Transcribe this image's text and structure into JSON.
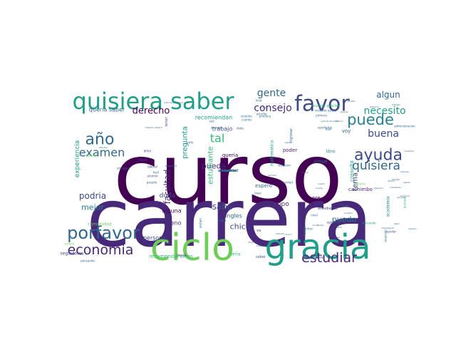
{
  "colors": {
    "background": "#ffffff",
    "palette": [
      "#440154",
      "#482878",
      "#3e4989",
      "#31688e",
      "#26828e",
      "#1f9e89",
      "#35b779",
      "#6ece58",
      "#b5de2b"
    ]
  },
  "words": [
    {
      "text": "curso",
      "weight": 1.0,
      "color": 0,
      "vertical": false
    },
    {
      "text": "carrera",
      "weight": 0.97,
      "color": 1,
      "vertical": false
    },
    {
      "text": "ciclo",
      "weight": 0.52,
      "color": 7,
      "vertical": false
    },
    {
      "text": "gracia",
      "weight": 0.5,
      "color": 5,
      "vertical": false
    },
    {
      "text": "quisiera saber",
      "weight": 0.34,
      "color": 5,
      "vertical": false
    },
    {
      "text": "favor",
      "weight": 0.3,
      "color": 2,
      "vertical": false
    },
    {
      "text": "porfavor",
      "weight": 0.26,
      "color": 3,
      "vertical": false
    },
    {
      "text": "ayuda",
      "weight": 0.24,
      "color": 2,
      "vertical": false
    },
    {
      "text": "economia",
      "weight": 0.24,
      "color": 1,
      "vertical": false
    },
    {
      "text": "estudiar",
      "weight": 0.24,
      "color": 1,
      "vertical": false
    },
    {
      "text": "año",
      "weight": 0.22,
      "color": 3,
      "vertical": false
    },
    {
      "text": "puede",
      "weight": 0.22,
      "color": 4,
      "vertical": false
    },
    {
      "text": "quisiera",
      "weight": 0.2,
      "color": 3,
      "vertical": false
    },
    {
      "text": "examen",
      "weight": 0.17,
      "color": 3,
      "vertical": false
    },
    {
      "text": "gente",
      "weight": 0.16,
      "color": 3,
      "vertical": false
    },
    {
      "text": "consejo",
      "weight": 0.16,
      "color": 1,
      "vertical": false
    },
    {
      "text": "buena",
      "weight": 0.16,
      "color": 2,
      "vertical": false
    },
    {
      "text": "necesito",
      "weight": 0.16,
      "color": 5,
      "vertical": false
    },
    {
      "text": "derecho",
      "weight": 0.16,
      "color": 0,
      "vertical": false
    },
    {
      "text": "algun",
      "weight": 0.14,
      "color": 3,
      "vertical": false
    },
    {
      "text": "tal",
      "weight": 0.15,
      "color": 6,
      "vertical": false
    },
    {
      "text": "podria",
      "weight": 0.14,
      "color": 2,
      "vertical": false
    },
    {
      "text": "pueda",
      "weight": 0.14,
      "color": 1,
      "vertical": false
    },
    {
      "text": "puedo",
      "weight": 0.14,
      "color": 4,
      "vertical": false
    },
    {
      "text": "mejor",
      "weight": 0.13,
      "color": 4,
      "vertical": false
    },
    {
      "text": "sabe",
      "weight": 0.14,
      "color": 2,
      "vertical": false
    },
    {
      "text": "chico",
      "weight": 0.14,
      "color": 2,
      "vertical": false
    },
    {
      "text": "tema",
      "weight": 0.12,
      "color": 2,
      "vertical": true
    },
    {
      "text": "pregunta",
      "weight": 0.12,
      "color": 5,
      "vertical": true
    },
    {
      "text": "estudiante",
      "weight": 0.12,
      "color": 6,
      "vertical": true
    },
    {
      "text": "facultad",
      "weight": 0.13,
      "color": 1,
      "vertical": true
    },
    {
      "text": "experiencia",
      "weight": 0.1,
      "color": 5,
      "vertical": true
    },
    {
      "text": "duda",
      "weight": 0.1,
      "color": 2,
      "vertical": false
    },
    {
      "text": "tiempo",
      "weight": 0.1,
      "color": 1,
      "vertical": false
    },
    {
      "text": "alguna",
      "weight": 0.1,
      "color": 0,
      "vertical": false
    },
    {
      "text": "bueno",
      "weight": 0.09,
      "color": 1,
      "vertical": false
    },
    {
      "text": "persona",
      "weight": 0.09,
      "color": 2,
      "vertical": false
    },
    {
      "text": "trabajo",
      "weight": 0.09,
      "color": 2,
      "vertical": false
    },
    {
      "text": "recomiendan",
      "weight": 0.09,
      "color": 5,
      "vertical": false
    },
    {
      "text": "queria saber",
      "weight": 0.08,
      "color": 3,
      "vertical": false
    },
    {
      "text": "ingles",
      "weight": 0.08,
      "color": 3,
      "vertical": false
    },
    {
      "text": "poder",
      "weight": 0.08,
      "color": 1,
      "vertical": false
    },
    {
      "text": "voy",
      "weight": 0.08,
      "color": 3,
      "vertical": false
    },
    {
      "text": "pre",
      "weight": 0.08,
      "color": 0,
      "vertical": false
    },
    {
      "text": "espero",
      "weight": 0.07,
      "color": 3,
      "vertical": false
    },
    {
      "text": "cachimbo",
      "weight": 0.07,
      "color": 1,
      "vertical": false
    },
    {
      "text": "queria",
      "weight": 0.07,
      "color": 0,
      "vertical": false
    },
    {
      "text": "virtual",
      "weight": 0.07,
      "color": 4,
      "vertical": false
    },
    {
      "text": "libro",
      "weight": 0.07,
      "color": 4,
      "vertical": false
    },
    {
      "text": "recomendaciones",
      "weight": 0.07,
      "color": 6,
      "vertical": false
    },
    {
      "text": "comunidad",
      "weight": 0.06,
      "color": 7,
      "vertical": false
    },
    {
      "text": "seguidores",
      "weight": 0.06,
      "color": 2,
      "vertical": false
    },
    {
      "text": "consulta",
      "weight": 0.08,
      "color": 5,
      "vertical": true
    },
    {
      "text": "matematica",
      "weight": 0.06,
      "color": 5,
      "vertical": true
    },
    {
      "text": "ingresar",
      "weight": 0.06,
      "color": 3,
      "vertical": true
    },
    {
      "text": "academia",
      "weight": 0.06,
      "color": 4,
      "vertical": true
    },
    {
      "text": "clase",
      "weight": 0.05,
      "color": 2,
      "vertical": false
    },
    {
      "text": "tener",
      "weight": 0.05,
      "color": 2,
      "vertical": true
    },
    {
      "text": "llevar",
      "weight": 0.05,
      "color": 2,
      "vertical": false
    },
    {
      "text": "seria",
      "weight": 0.06,
      "color": 6,
      "vertical": false
    },
    {
      "text": "saber",
      "weight": 0.05,
      "color": 3,
      "vertical": false
    },
    {
      "text": "agradeceria",
      "weight": 0.05,
      "color": 2,
      "vertical": false
    },
    {
      "text": "estudiando",
      "weight": 0.05,
      "color": 2,
      "vertical": false
    },
    {
      "text": "caso",
      "weight": 0.05,
      "color": 3,
      "vertical": true
    },
    {
      "text": "muchas gracias",
      "weight": 0.05,
      "color": 6,
      "vertical": false
    },
    {
      "text": "va",
      "weight": 0.05,
      "color": 2,
      "vertical": false
    },
    {
      "text": "cato",
      "weight": 0.05,
      "color": 3,
      "vertical": false
    },
    {
      "text": "estan",
      "weight": 0.05,
      "color": 4,
      "vertical": true
    },
    {
      "text": "postular",
      "weight": 0.04,
      "color": 6,
      "vertical": true
    },
    {
      "text": "ayudar",
      "weight": 0.04,
      "color": 2,
      "vertical": false
    },
    {
      "text": "pasado",
      "weight": 0.04,
      "color": 3,
      "vertical": false
    },
    {
      "text": "alumno",
      "weight": 0.04,
      "color": 2,
      "vertical": false
    },
    {
      "text": "finanzas",
      "weight": 0.04,
      "color": 2,
      "vertical": false
    },
    {
      "text": "egresado",
      "weight": 0.04,
      "color": 2,
      "vertical": false
    },
    {
      "text": "dificil",
      "weight": 0.04,
      "color": 2,
      "vertical": false
    },
    {
      "text": "laboral",
      "weight": 0.04,
      "color": 2,
      "vertical": false
    },
    {
      "text": "cuenta",
      "weight": 0.04,
      "color": 3,
      "vertical": false
    },
    {
      "text": "debo",
      "weight": 0.04,
      "color": 3,
      "vertical": false
    },
    {
      "text": "profe",
      "weight": 0.04,
      "color": 3,
      "vertical": false
    },
    {
      "text": "entrar",
      "weight": 0.04,
      "color": 3,
      "vertical": false
    },
    {
      "text": "base",
      "weight": 0.04,
      "color": 3,
      "vertical": false
    },
    {
      "text": "verdad",
      "weight": 0.04,
      "color": 3,
      "vertical": false
    },
    {
      "text": "verano",
      "weight": 0.04,
      "color": 7,
      "vertical": false
    },
    {
      "text": "ingresar",
      "weight": 0.035,
      "color": 7,
      "vertical": false
    },
    {
      "text": "hola",
      "weight": 0.03,
      "color": 3,
      "vertical": false
    },
    {
      "text": "necesito ayuda",
      "weight": 0.03,
      "color": 3,
      "vertical": false
    },
    {
      "text": "estudio",
      "weight": 0.03,
      "color": 3,
      "vertical": false
    },
    {
      "text": "practica",
      "weight": 0.03,
      "color": 3,
      "vertical": false
    },
    {
      "text": "sistema",
      "weight": 0.03,
      "color": 3,
      "vertical": false
    },
    {
      "text": "situacion",
      "weight": 0.03,
      "color": 3,
      "vertical": false
    },
    {
      "text": "ayudarme",
      "weight": 0.03,
      "color": 3,
      "vertical": false
    },
    {
      "text": "aqui",
      "weight": 0.03,
      "color": 3,
      "vertical": false
    },
    {
      "text": "vez",
      "weight": 0.03,
      "color": 3,
      "vertical": false
    },
    {
      "text": "proceso",
      "weight": 0.03,
      "color": 3,
      "vertical": false
    },
    {
      "text": "buscando",
      "weight": 0.03,
      "color": 5,
      "vertical": false
    },
    {
      "text": "primera",
      "weight": 0.03,
      "color": 3,
      "vertical": false
    },
    {
      "text": "examen",
      "weight": 0.03,
      "color": 3,
      "vertical": false
    },
    {
      "text": "guitarra",
      "weight": 0.03,
      "color": 7,
      "vertical": false
    },
    {
      "text": "emsggcc",
      "weight": 0.03,
      "color": 3,
      "vertical": false
    },
    {
      "text": "pensando",
      "weight": 0.025,
      "color": 3,
      "vertical": false
    },
    {
      "text": "requisito",
      "weight": 0.025,
      "color": 3,
      "vertical": true
    },
    {
      "text": "facil",
      "weight": 0.025,
      "color": 3,
      "vertical": false
    },
    {
      "text": "nivel",
      "weight": 0.025,
      "color": 3,
      "vertical": false
    },
    {
      "text": "administracion",
      "weight": 0.025,
      "color": 3,
      "vertical": false
    },
    {
      "text": "gracias",
      "weight": 0.025,
      "color": 3,
      "vertical": false
    },
    {
      "text": "historia",
      "weight": 0.025,
      "color": 3,
      "vertical": false
    },
    {
      "text": "pueden",
      "weight": 0.025,
      "color": 3,
      "vertical": false
    },
    {
      "text": "presencial",
      "weight": 0.025,
      "color": 3,
      "vertical": false
    },
    {
      "text": "deberia",
      "weight": 0.025,
      "color": 3,
      "vertical": false
    },
    {
      "text": "busco",
      "weight": 0.025,
      "color": 3,
      "vertical": false
    },
    {
      "text": "iniciar",
      "weight": 0.025,
      "color": 3,
      "vertical": false
    },
    {
      "text": "pago",
      "weight": 0.025,
      "color": 3,
      "vertical": false
    },
    {
      "text": "cuanto",
      "weight": 0.025,
      "color": 3,
      "vertical": false
    },
    {
      "text": "opinion",
      "weight": 0.025,
      "color": 3,
      "vertical": false
    },
    {
      "text": "ingreso",
      "weight": 0.025,
      "color": 3,
      "vertical": false
    },
    {
      "text": "amigo",
      "weight": 0.025,
      "color": 3,
      "vertical": false
    },
    {
      "text": "posible",
      "weight": 0.025,
      "color": 3,
      "vertical": false
    },
    {
      "text": "informacion llevar curso",
      "weight": 0.02,
      "color": 3,
      "vertical": false
    },
    {
      "text": "traslado externo",
      "weight": 0.02,
      "color": 3,
      "vertical": false
    },
    {
      "text": "cosas",
      "weight": 0.02,
      "color": 3,
      "vertical": false
    },
    {
      "text": "gracias animado",
      "weight": 0.02,
      "color": 3,
      "vertical": false
    },
    {
      "text": "empresarial",
      "weight": 0.02,
      "color": 3,
      "vertical": false
    },
    {
      "text": "pueda",
      "weight": 0.02,
      "color": 3,
      "vertical": false
    },
    {
      "text": "interesado",
      "weight": 0.02,
      "color": 3,
      "vertical": false
    },
    {
      "text": "maestria",
      "weight": 0.02,
      "color": 3,
      "vertical": false
    },
    {
      "text": "algunas",
      "weight": 0.02,
      "color": 3,
      "vertical": false
    },
    {
      "text": "ingeniero",
      "weight": 0.02,
      "color": 3,
      "vertical": false
    },
    {
      "text": "estudiar",
      "weight": 0.02,
      "color": 3,
      "vertical": false
    },
    {
      "text": "cuarto",
      "weight": 0.02,
      "color": 3,
      "vertical": false
    },
    {
      "text": "trabajar",
      "weight": 0.02,
      "color": 3,
      "vertical": false
    },
    {
      "text": "francia",
      "weight": 0.02,
      "color": 3,
      "vertical": false
    },
    {
      "text": "asesoria",
      "weight": 0.02,
      "color": 3,
      "vertical": false
    },
    {
      "text": "ustedes",
      "weight": 0.02,
      "color": 3,
      "vertical": false
    },
    {
      "text": "semana",
      "weight": 0.02,
      "color": 3,
      "vertical": false
    },
    {
      "text": "laptop",
      "weight": 0.02,
      "color": 3,
      "vertical": false
    },
    {
      "text": "algun",
      "weight": 0.02,
      "color": 3,
      "vertical": false
    },
    {
      "text": "general",
      "weight": 0.02,
      "color": 3,
      "vertical": false
    },
    {
      "text": "alguien",
      "weight": 0.02,
      "color": 3,
      "vertical": false
    },
    {
      "text": "empresa",
      "weight": 0.02,
      "color": 3,
      "vertical": false
    },
    {
      "text": "idioma",
      "weight": 0.02,
      "color": 3,
      "vertical": false
    },
    {
      "text": "saludo",
      "weight": 0.02,
      "color": 3,
      "vertical": false
    },
    {
      "text": "mes",
      "weight": 0.02,
      "color": 3,
      "vertical": false
    },
    {
      "text": "universidad",
      "weight": 0.02,
      "color": 3,
      "vertical": false
    },
    {
      "text": "inicio",
      "weight": 0.02,
      "color": 3,
      "vertical": false
    },
    {
      "text": "mencionar",
      "weight": 0.02,
      "color": 3,
      "vertical": false
    },
    {
      "text": "carrera",
      "weight": 0.02,
      "color": 3,
      "vertical": false
    },
    {
      "text": "preguntar",
      "weight": 0.02,
      "color": 3,
      "vertical": false
    },
    {
      "text": "costo",
      "weight": 0.02,
      "color": 3,
      "vertical": false
    }
  ]
}
